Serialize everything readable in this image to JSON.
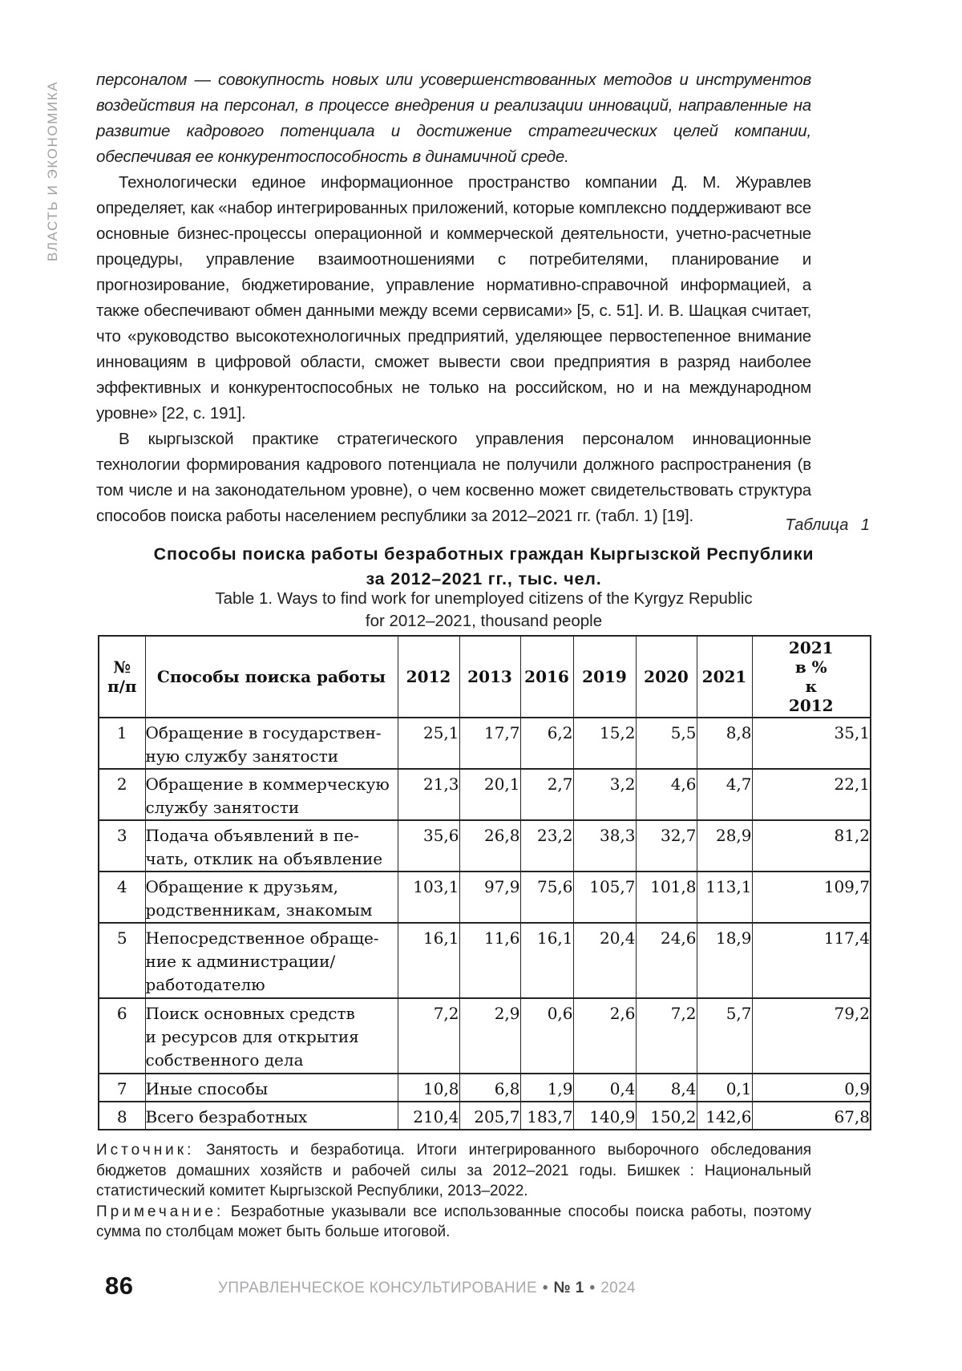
{
  "sidebar": {
    "label": "ВЛАСТЬ И ЭКОНОМИКА"
  },
  "body": {
    "p1": "персоналом — совокупность новых или усовершенствованных методов и инструментов воздействия на персонал, в процессе внедрения и реализации инноваций, направленные на развитие кадрового потенциала и достижение стратегических целей компании, обеспечивая ее конкурентоспособность в динамичной среде.",
    "p2": "Технологически единое информационное пространство компании Д. М. Журавлев определяет, как «набор интегрированных приложений, которые комплексно поддерживают все основные бизнес-процессы операционной и коммерческой деятельности, учетно-расчетные процедуры, управление взаимоотношениями с потребителями, планирование и прогнозирование, бюджетирование, управление нормативно-справочной информацией, а также обеспечивают обмен данными между всеми сервисами» [5, с. 51]. И. В. Шацкая считает, что «руководство высокотехнологичных предприятий, уделяющее первостепенное внимание инновациям в цифровой области, сможет вывести свои предприятия в разряд наиболее эффективных и конкурентоспособных не только на российском, но и на международном уровне» [22, с. 191].",
    "p3": "В кыргызской практике стратегического управления персоналом инновационные технологии формирования кадрового потенциала не получили должного распространения (в том числе и на законодательном уровне), о чем косвенно может свидетельствовать структура способов поиска работы населением республики за 2012–2021 гг. (табл. 1) [19]."
  },
  "table_section": {
    "label": "Таблица 1",
    "title_ru": [
      "Способы поиска работы безработных граждан Кыргызской Республики",
      "за 2012–2021 гг., тыс. чел."
    ],
    "title_en": [
      "Table 1. Ways to find work for unemployed citizens of the Kyrgyz Republic",
      "for 2012–2021, thousand people"
    ],
    "source_label": "Источник:",
    "source_text": " Занятость и безработица. Итоги интегрированного выборочного обследования бюджетов домашних хозяйств и рабочей силы за 2012–2021 годы. Бишкек : Национальный статистический комитет Кыргызской Республики, 2013–2022.",
    "note_label": "Примечание:",
    "note_text": " Безработные указывали все использованные способы поиска работы, поэтому сумма по столбцам может быть больше итоговой."
  },
  "chart_data": {
    "type": "table",
    "columns": [
      "№ п/п",
      "Способы поиска работы",
      "2012",
      "2013",
      "2016",
      "2019",
      "2020",
      "2021",
      "2021 в % к 2012"
    ],
    "header_display_lines": [
      [
        "№",
        "п/п"
      ],
      [
        "Способы поиска работы"
      ],
      [
        "2012"
      ],
      [
        "2013"
      ],
      [
        "2016"
      ],
      [
        "2019"
      ],
      [
        "2020"
      ],
      [
        "2021"
      ],
      [
        "2021",
        "в %",
        "к",
        "2012"
      ]
    ],
    "rows": [
      {
        "num": "1",
        "label_lines": [
          "Обращение в государствен-",
          "ную службу занятости"
        ],
        "values": [
          "25,1",
          "17,7",
          "6,2",
          "15,2",
          "5,5",
          "8,8",
          "35,1"
        ]
      },
      {
        "num": "2",
        "label_lines": [
          "Обращение в коммерческую",
          "службу занятости"
        ],
        "values": [
          "21,3",
          "20,1",
          "2,7",
          "3,2",
          "4,6",
          "4,7",
          "22,1"
        ]
      },
      {
        "num": "3",
        "label_lines": [
          "Подача объявлений в пе-",
          "чать, отклик на объявление"
        ],
        "values": [
          "35,6",
          "26,8",
          "23,2",
          "38,3",
          "32,7",
          "28,9",
          "81,2"
        ]
      },
      {
        "num": "4",
        "label_lines": [
          "Обращение к друзьям,",
          "родственникам, знакомым"
        ],
        "values": [
          "103,1",
          "97,9",
          "75,6",
          "105,7",
          "101,8",
          "113,1",
          "109,7"
        ]
      },
      {
        "num": "5",
        "label_lines": [
          "Непосредственное обраще-",
          "ние к администрации/",
          "работодателю"
        ],
        "values": [
          "16,1",
          "11,6",
          "16,1",
          "20,4",
          "24,6",
          "18,9",
          "117,4"
        ]
      },
      {
        "num": "6",
        "label_lines": [
          "Поиск основных средств",
          "и ресурсов для открытия",
          "собственного дела"
        ],
        "values": [
          "7,2",
          "2,9",
          "0,6",
          "2,6",
          "7,2",
          "5,7",
          "79,2"
        ]
      },
      {
        "num": "7",
        "label_lines": [
          "Иные способы"
        ],
        "values": [
          "10,8",
          "6,8",
          "1,9",
          "0,4",
          "8,4",
          "0,1",
          "0,9"
        ]
      },
      {
        "num": "8",
        "label_lines": [
          "Всего безработных"
        ],
        "values": [
          "210,4",
          "205,7",
          "183,7",
          "140,9",
          "150,2",
          "142,6",
          "67,8"
        ]
      }
    ]
  },
  "footer": {
    "page_number": "86",
    "journal": "УПРАВЛЕНЧЕСКОЕ КОНСУЛЬТИРОВАНИЕ",
    "issue": "№ 1",
    "year": "2024",
    "dot": "•"
  }
}
